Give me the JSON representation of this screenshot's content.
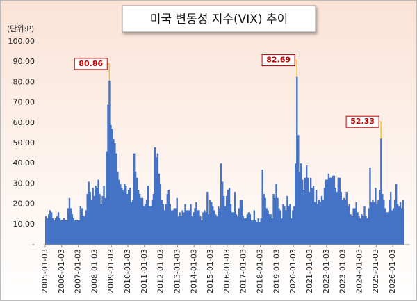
{
  "chart_data": {
    "type": "bar",
    "title": "미국 변동성 지수(VIX) 추이",
    "unit_label": "(단위:P)",
    "color": "#4472c4",
    "x": [
      "2005-01",
      "2005-02",
      "2005-03",
      "2005-04",
      "2005-05",
      "2005-06",
      "2005-07",
      "2005-08",
      "2005-09",
      "2005-10",
      "2005-11",
      "2005-12",
      "2006-01",
      "2006-02",
      "2006-03",
      "2006-04",
      "2006-05",
      "2006-06",
      "2006-07",
      "2006-08",
      "2006-09",
      "2006-10",
      "2006-11",
      "2006-12",
      "2007-01",
      "2007-02",
      "2007-03",
      "2007-04",
      "2007-05",
      "2007-06",
      "2007-07",
      "2007-08",
      "2007-09",
      "2007-10",
      "2007-11",
      "2007-12",
      "2008-01",
      "2008-02",
      "2008-03",
      "2008-04",
      "2008-05",
      "2008-06",
      "2008-07",
      "2008-08",
      "2008-09",
      "2008-10",
      "2008-11",
      "2008-12",
      "2009-01",
      "2009-02",
      "2009-03",
      "2009-04",
      "2009-05",
      "2009-06",
      "2009-07",
      "2009-08",
      "2009-09",
      "2009-10",
      "2009-11",
      "2009-12",
      "2010-01",
      "2010-02",
      "2010-03",
      "2010-04",
      "2010-05",
      "2010-06",
      "2010-07",
      "2010-08",
      "2010-09",
      "2010-10",
      "2010-11",
      "2010-12",
      "2011-01",
      "2011-02",
      "2011-03",
      "2011-04",
      "2011-05",
      "2011-06",
      "2011-07",
      "2011-08",
      "2011-09",
      "2011-10",
      "2011-11",
      "2011-12",
      "2012-01",
      "2012-02",
      "2012-03",
      "2012-04",
      "2012-05",
      "2012-06",
      "2012-07",
      "2012-08",
      "2012-09",
      "2012-10",
      "2012-11",
      "2012-12",
      "2013-01",
      "2013-02",
      "2013-03",
      "2013-04",
      "2013-05",
      "2013-06",
      "2013-07",
      "2013-08",
      "2013-09",
      "2013-10",
      "2013-11",
      "2013-12",
      "2014-01",
      "2014-02",
      "2014-03",
      "2014-04",
      "2014-05",
      "2014-06",
      "2014-07",
      "2014-08",
      "2014-09",
      "2014-10",
      "2014-11",
      "2014-12",
      "2015-01",
      "2015-02",
      "2015-03",
      "2015-04",
      "2015-05",
      "2015-06",
      "2015-07",
      "2015-08",
      "2015-09",
      "2015-10",
      "2015-11",
      "2015-12",
      "2016-01",
      "2016-02",
      "2016-03",
      "2016-04",
      "2016-05",
      "2016-06",
      "2016-07",
      "2016-08",
      "2016-09",
      "2016-10",
      "2016-11",
      "2016-12",
      "2017-01",
      "2017-02",
      "2017-03",
      "2017-04",
      "2017-05",
      "2017-06",
      "2017-07",
      "2017-08",
      "2017-09",
      "2017-10",
      "2017-11",
      "2017-12",
      "2018-01",
      "2018-02",
      "2018-03",
      "2018-04",
      "2018-05",
      "2018-06",
      "2018-07",
      "2018-08",
      "2018-09",
      "2018-10",
      "2018-11",
      "2018-12",
      "2019-01",
      "2019-02",
      "2019-03",
      "2019-04",
      "2019-05",
      "2019-06",
      "2019-07",
      "2019-08",
      "2019-09",
      "2019-10",
      "2019-11",
      "2019-12",
      "2020-01",
      "2020-02",
      "2020-03",
      "2020-04",
      "2020-05",
      "2020-06",
      "2020-07",
      "2020-08",
      "2020-09",
      "2020-10",
      "2020-11",
      "2020-12",
      "2021-01",
      "2021-02",
      "2021-03",
      "2021-04",
      "2021-05",
      "2021-06",
      "2021-07",
      "2021-08",
      "2021-09",
      "2021-10",
      "2021-11",
      "2021-12",
      "2022-01",
      "2022-02",
      "2022-03",
      "2022-04",
      "2022-05",
      "2022-06",
      "2022-07",
      "2022-08",
      "2022-09",
      "2022-10",
      "2022-11",
      "2022-12",
      "2023-01",
      "2023-02",
      "2023-03",
      "2023-04",
      "2023-05",
      "2023-06",
      "2023-07",
      "2023-08",
      "2023-09",
      "2023-10",
      "2023-11",
      "2023-12",
      "2024-01",
      "2024-02",
      "2024-03",
      "2024-04",
      "2024-05",
      "2024-06",
      "2024-07",
      "2024-08",
      "2024-09",
      "2024-10",
      "2024-11",
      "2024-12",
      "2025-01",
      "2025-02",
      "2025-03",
      "2025-04",
      "2025-05",
      "2025-06",
      "2025-07",
      "2025-08",
      "2025-09",
      "2025-10",
      "2025-11",
      "2025-12",
      "2026-01",
      "2026-02",
      "2026-03",
      "2026-04",
      "2026-05",
      "2026-06",
      "2026-07",
      "2026-08"
    ],
    "values": [
      14,
      13,
      15,
      17,
      16,
      13,
      12,
      13,
      14,
      16,
      13,
      12,
      12,
      13,
      12,
      12,
      18,
      23,
      18,
      15,
      13,
      12,
      12,
      12,
      12,
      19,
      18,
      14,
      14,
      17,
      25,
      31,
      26,
      22,
      28,
      24,
      29,
      28,
      32,
      25,
      20,
      24,
      29,
      23,
      46,
      69,
      80.86,
      59,
      57,
      52,
      50,
      45,
      36,
      32,
      30,
      28,
      27,
      30,
      29,
      25,
      27,
      28,
      21,
      22,
      45,
      36,
      33,
      27,
      25,
      23,
      23,
      19,
      20,
      22,
      29,
      19,
      19,
      22,
      25,
      48,
      43,
      45,
      35,
      30,
      22,
      20,
      17,
      20,
      25,
      27,
      20,
      17,
      17,
      18,
      18,
      23,
      14,
      16,
      14,
      17,
      16,
      20,
      17,
      17,
      17,
      20,
      14,
      16,
      18,
      21,
      17,
      17,
      14,
      12,
      16,
      17,
      16,
      26,
      15,
      22,
      21,
      19,
      17,
      15,
      14,
      19,
      18,
      40,
      31,
      24,
      19,
      24,
      27,
      28,
      20,
      16,
      16,
      26,
      15,
      14,
      18,
      22,
      22,
      14,
      13,
      13,
      15,
      16,
      15,
      12,
      12,
      17,
      12,
      11,
      13,
      11,
      13,
      37,
      25,
      23,
      18,
      17,
      15,
      15,
      13,
      25,
      23,
      30,
      23,
      18,
      17,
      13,
      20,
      19,
      17,
      24,
      19,
      20,
      13,
      17,
      19,
      40,
      82.69,
      54,
      36,
      40,
      32,
      27,
      33,
      39,
      33,
      26,
      33,
      28,
      29,
      21,
      27,
      20,
      22,
      21,
      24,
      22,
      28,
      32,
      32,
      35,
      33,
      33,
      34,
      34,
      28,
      26,
      33,
      33,
      26,
      22,
      23,
      22,
      26,
      19,
      20,
      15,
      14,
      18,
      18,
      21,
      16,
      14,
      13,
      15,
      14,
      19,
      14,
      13,
      18,
      38,
      21,
      22,
      21,
      28,
      20,
      22,
      27,
      52.33,
      25,
      22,
      18,
      16,
      16,
      22,
      26,
      17,
      18,
      22,
      30,
      20,
      19,
      21,
      18,
      22
    ],
    "ylim": [
      0,
      100
    ],
    "yticks": [
      {
        "value": 0,
        "label": "-"
      },
      {
        "value": 10,
        "label": "10.00"
      },
      {
        "value": 20,
        "label": "20.00"
      },
      {
        "value": 30,
        "label": "30.00"
      },
      {
        "value": 40,
        "label": "40.00"
      },
      {
        "value": 50,
        "label": "50.00"
      },
      {
        "value": 60,
        "label": "60.00"
      },
      {
        "value": 70,
        "label": "70.00"
      },
      {
        "value": 80,
        "label": "80.00"
      },
      {
        "value": 90,
        "label": "90.00"
      },
      {
        "value": 100,
        "label": "100.00"
      }
    ],
    "xticks": [
      {
        "value": "2005-01",
        "label": "2005-01-03"
      },
      {
        "value": "2006-01",
        "label": "2006-01-03"
      },
      {
        "value": "2007-01",
        "label": "2007-01-03"
      },
      {
        "value": "2008-01",
        "label": "2008-01-03"
      },
      {
        "value": "2009-01",
        "label": "2009-01-03"
      },
      {
        "value": "2010-01",
        "label": "2010-01-03"
      },
      {
        "value": "2011-01",
        "label": "2011-01-03"
      },
      {
        "value": "2012-01",
        "label": "2012-01-03"
      },
      {
        "value": "2013-01",
        "label": "2013-01-03"
      },
      {
        "value": "2014-01",
        "label": "2014-01-03"
      },
      {
        "value": "2015-01",
        "label": "2015-01-03"
      },
      {
        "value": "2016-01",
        "label": "2016-01-03"
      },
      {
        "value": "2017-01",
        "label": "2017-01-03"
      },
      {
        "value": "2018-01",
        "label": "2018-01-03"
      },
      {
        "value": "2019-01",
        "label": "2019-01-03"
      },
      {
        "value": "2020-01",
        "label": "2020-01-03"
      },
      {
        "value": "2021-01",
        "label": "2021-01-03"
      },
      {
        "value": "2022-01",
        "label": "2022-01-03"
      },
      {
        "value": "2023-01",
        "label": "2023-01-03"
      },
      {
        "value": "2024-01",
        "label": "2024-01-03"
      },
      {
        "value": "2025-01",
        "label": "2025-01-03"
      },
      {
        "value": "2026-01",
        "label": "2026-01-03"
      }
    ],
    "annotations": [
      {
        "x": "2008-11",
        "value": 80.86
      },
      {
        "x": "2020-03",
        "value": 82.69
      },
      {
        "x": "2025-04",
        "value": 52.33
      }
    ],
    "grid": false
  }
}
